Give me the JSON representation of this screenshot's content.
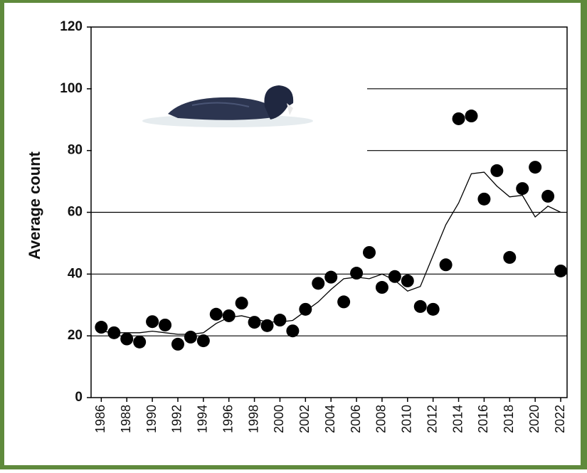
{
  "chart_data": {
    "type": "scatter",
    "y_label": "Average count",
    "x": [
      1986,
      1987,
      1988,
      1989,
      1990,
      1991,
      1992,
      1993,
      1994,
      1995,
      1996,
      1997,
      1998,
      1999,
      2000,
      2001,
      2002,
      2003,
      2004,
      2005,
      2006,
      2007,
      2008,
      2009,
      2010,
      2011,
      2012,
      2013,
      2014,
      2015,
      2016,
      2017,
      2018,
      2019,
      2020,
      2021,
      2022
    ],
    "series": [
      {
        "color": "#000000",
        "values": [
          22.8,
          21,
          19,
          18,
          24.6,
          23.5,
          17.3,
          19.6,
          18.4,
          27,
          26.5,
          30.6,
          24.4,
          23.3,
          25.1,
          21.6,
          28.6,
          37,
          39,
          31,
          40.3,
          47,
          35.7,
          39.2,
          37.8,
          29.5,
          28.6,
          43,
          90.3,
          91.2,
          64.3,
          73.5,
          45.4,
          67.7,
          74.6,
          65.2,
          41
        ]
      },
      {
        "type": "line",
        "color": "#000000",
        "values": [
          21.5,
          21,
          21,
          21,
          21.5,
          21,
          20.5,
          20.5,
          21,
          24,
          26,
          26.5,
          25.5,
          24.5,
          24.5,
          25,
          28,
          31,
          35,
          38.5,
          39,
          38.5,
          40,
          38,
          34.5,
          36,
          46,
          56,
          63,
          72.5,
          73,
          68.5,
          65,
          65.5,
          58.5,
          62,
          60
        ]
      }
    ],
    "xlim": [
      1985.2,
      2022.5
    ],
    "xticks": [
      1986,
      1988,
      1990,
      1992,
      1994,
      1996,
      1998,
      2000,
      2002,
      2004,
      2006,
      2008,
      2010,
      2012,
      2014,
      2016,
      2018,
      2020,
      2022
    ],
    "ylim": [
      0,
      120
    ],
    "yticks": [
      0,
      20,
      40,
      60,
      80,
      100,
      120
    ],
    "grid": true
  }
}
